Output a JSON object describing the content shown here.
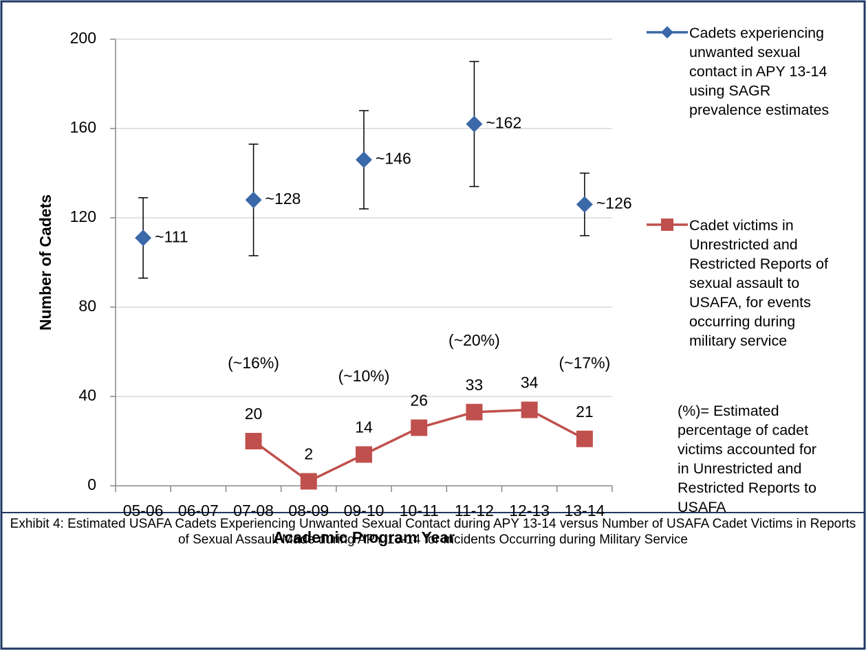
{
  "chart_data": {
    "type": "line",
    "xlabel": "Academic Program Year",
    "ylabel": "Number of Cadets",
    "categories": [
      "05-06",
      "06-07",
      "07-08",
      "08-09",
      "09-10",
      "10-11",
      "11-12",
      "12-13",
      "13-14"
    ],
    "series": [
      {
        "name": "Cadets experiencing unwanted sexual contact in APY 13-14 using SAGR prevalence estimates",
        "color": "#3a68a8",
        "marker": "diamond",
        "values": [
          111,
          null,
          128,
          null,
          146,
          null,
          162,
          null,
          126
        ],
        "errors": [
          18,
          null,
          25,
          null,
          22,
          null,
          28,
          null,
          14
        ],
        "value_labels": [
          "~111",
          null,
          "~128",
          null,
          "~146",
          null,
          "~162",
          null,
          "~126"
        ]
      },
      {
        "name": "Cadet victims in Unrestricted and Restricted Reports of sexual assault to USAFA, for events occurring during military service",
        "color": "#c0504d",
        "marker": "square",
        "values": [
          null,
          null,
          20,
          2,
          14,
          26,
          33,
          34,
          21
        ]
      }
    ],
    "annotations": [
      {
        "text": "(~16%)",
        "category": "07-08"
      },
      {
        "text": "(~10%)",
        "category": "09-10"
      },
      {
        "text": "(~20%)",
        "category": "11-12"
      },
      {
        "text": "(~17%)",
        "category": "13-14"
      }
    ],
    "legend_note": "(%)= Estimated percentage of cadet victims accounted for in Unrestricted and Restricted Reports to USAFA",
    "ylim": [
      0,
      200
    ],
    "yticks": [
      0,
      40,
      80,
      120,
      160,
      200
    ],
    "grid": true,
    "legend": "right",
    "caption": "Exhibit 4: Estimated USAFA Cadets Experiencing Unwanted Sexual Contact during APY 13-14 versus Number of USAFA Cadet Victims in Reports of Sexual Assault Made during APY 13-14 for Incidents Occurring during Military Service"
  }
}
